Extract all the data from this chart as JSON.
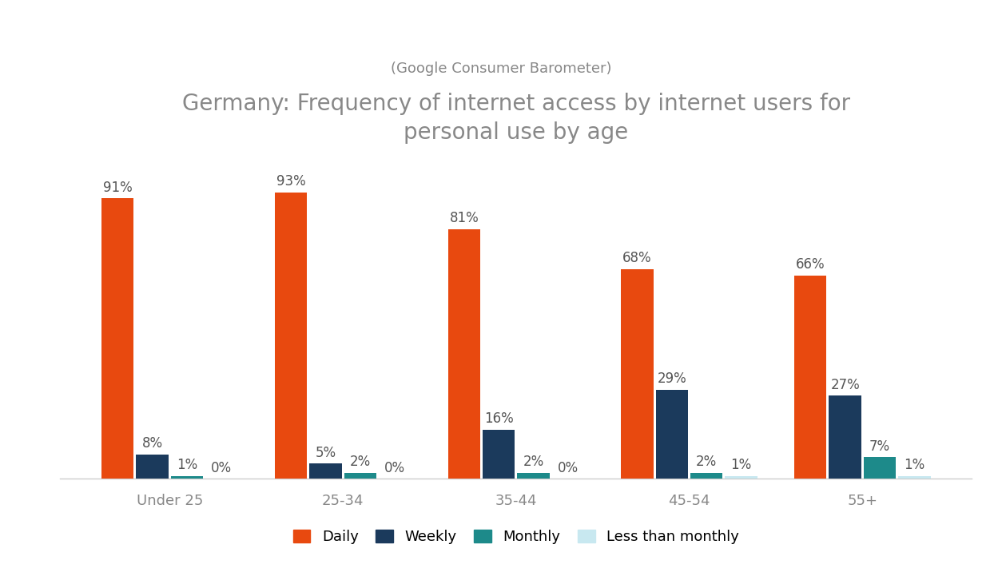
{
  "title": "Germany: Frequency of internet access by internet users for\npersonal use by age",
  "subtitle": "(Google Consumer Barometer)",
  "categories": [
    "Under 25",
    "25-34",
    "35-44",
    "45-54",
    "55+"
  ],
  "series": {
    "Daily": [
      91,
      93,
      81,
      68,
      66
    ],
    "Weekly": [
      8,
      5,
      16,
      29,
      27
    ],
    "Monthly": [
      1,
      2,
      2,
      2,
      7
    ],
    "Less than monthly": [
      0,
      0,
      0,
      1,
      1
    ]
  },
  "colors": {
    "Daily": "#E8490F",
    "Weekly": "#1B3A5C",
    "Monthly": "#1D8A8A",
    "Less than monthly": "#C8E8F0"
  },
  "bar_width": 0.2,
  "ylim": [
    0,
    108
  ],
  "background_color": "#FFFFFF",
  "title_fontsize": 20,
  "subtitle_fontsize": 13,
  "axis_label_fontsize": 13,
  "legend_fontsize": 13,
  "annotation_fontsize": 12,
  "title_color": "#888888",
  "subtitle_color": "#888888",
  "tick_color": "#888888",
  "annotation_color": "#555555"
}
